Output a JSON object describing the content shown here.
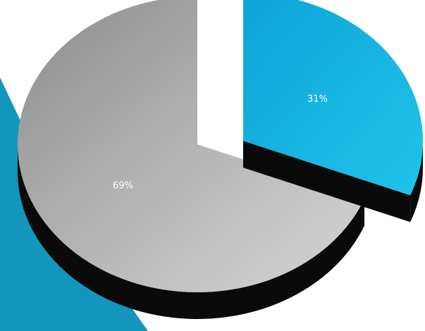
{
  "chart_data": {
    "type": "pie",
    "style": "3d-exploded",
    "slices": [
      {
        "label": "31%",
        "value": 31,
        "color": "#16b4e4",
        "exploded": true
      },
      {
        "label": "69%",
        "value": 69,
        "color": "#a8a8a8",
        "exploded": false
      }
    ],
    "background_accent_color": "#1296bc",
    "side_color": "#0a0a0a"
  }
}
